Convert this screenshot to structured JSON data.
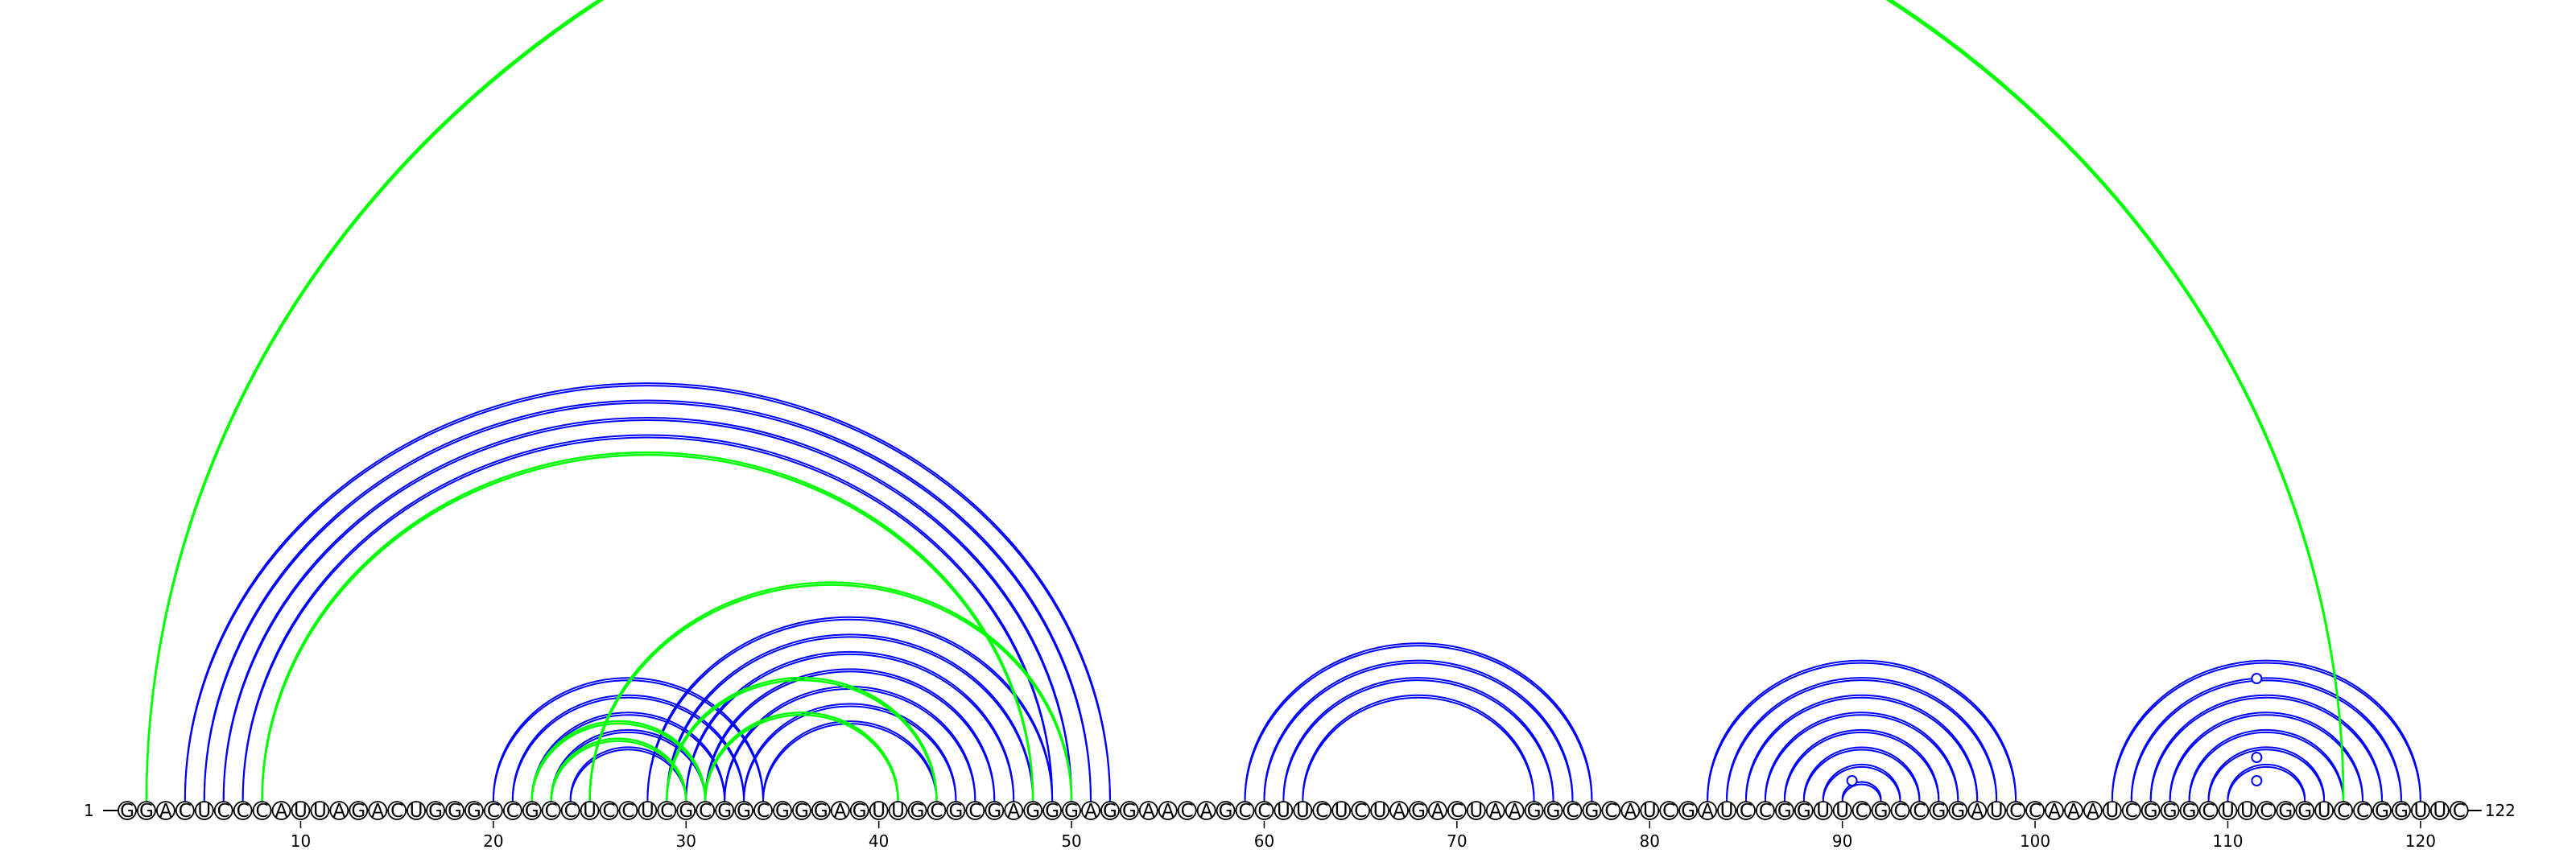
{
  "sequence": "GGACUCCCAUUAGACUGGGCCGCCUCCUCGCGGCGGGAGUUGCGCGAGGGAGGAACAGCCUUCUCUAGACUAAGGCGCAUCGAUCCGGUUCGCCGGAUCCAAAUCGGGCUUCGGUCCGGUUC",
  "start_label": "1",
  "end_label": "122",
  "tick_labels": [
    "10",
    "20",
    "30",
    "40",
    "50",
    "60",
    "70",
    "80",
    "90",
    "100",
    "110",
    "120"
  ],
  "tick_positions": [
    10,
    20,
    30,
    40,
    50,
    60,
    70,
    80,
    90,
    100,
    110,
    120
  ],
  "colors": {
    "primary_pairs": "#0000ff",
    "alternative_pairs": "#00ff00",
    "backbone": "#000000"
  },
  "blue_pairs": [
    [
      4,
      52
    ],
    [
      5,
      51
    ],
    [
      6,
      50
    ],
    [
      7,
      49
    ],
    [
      8,
      48
    ],
    [
      20,
      34
    ],
    [
      21,
      33
    ],
    [
      22,
      32
    ],
    [
      23,
      31
    ],
    [
      24,
      30
    ],
    [
      28,
      49
    ],
    [
      29,
      48
    ],
    [
      30,
      47
    ],
    [
      31,
      46
    ],
    [
      32,
      45
    ],
    [
      33,
      44
    ],
    [
      34,
      43
    ],
    [
      59,
      77
    ],
    [
      60,
      76
    ],
    [
      61,
      75
    ],
    [
      62,
      74
    ],
    [
      83,
      99
    ],
    [
      84,
      98
    ],
    [
      85,
      97
    ],
    [
      86,
      96
    ],
    [
      87,
      95
    ],
    [
      88,
      94
    ],
    [
      89,
      93
    ],
    [
      90,
      92
    ],
    [
      104,
      120
    ],
    [
      105,
      119
    ],
    [
      106,
      118
    ],
    [
      107,
      117
    ],
    [
      108,
      116
    ],
    [
      109,
      115
    ],
    [
      110,
      114
    ]
  ],
  "green_pairs": [
    [
      2,
      116
    ],
    [
      8,
      48
    ],
    [
      22,
      31
    ],
    [
      23,
      30
    ],
    [
      25,
      50
    ],
    [
      29,
      43
    ],
    [
      31,
      41
    ]
  ],
  "marked_positions": [
    90,
    111,
    111,
    111
  ],
  "marked_heights": [
    1,
    1,
    3,
    6
  ]
}
